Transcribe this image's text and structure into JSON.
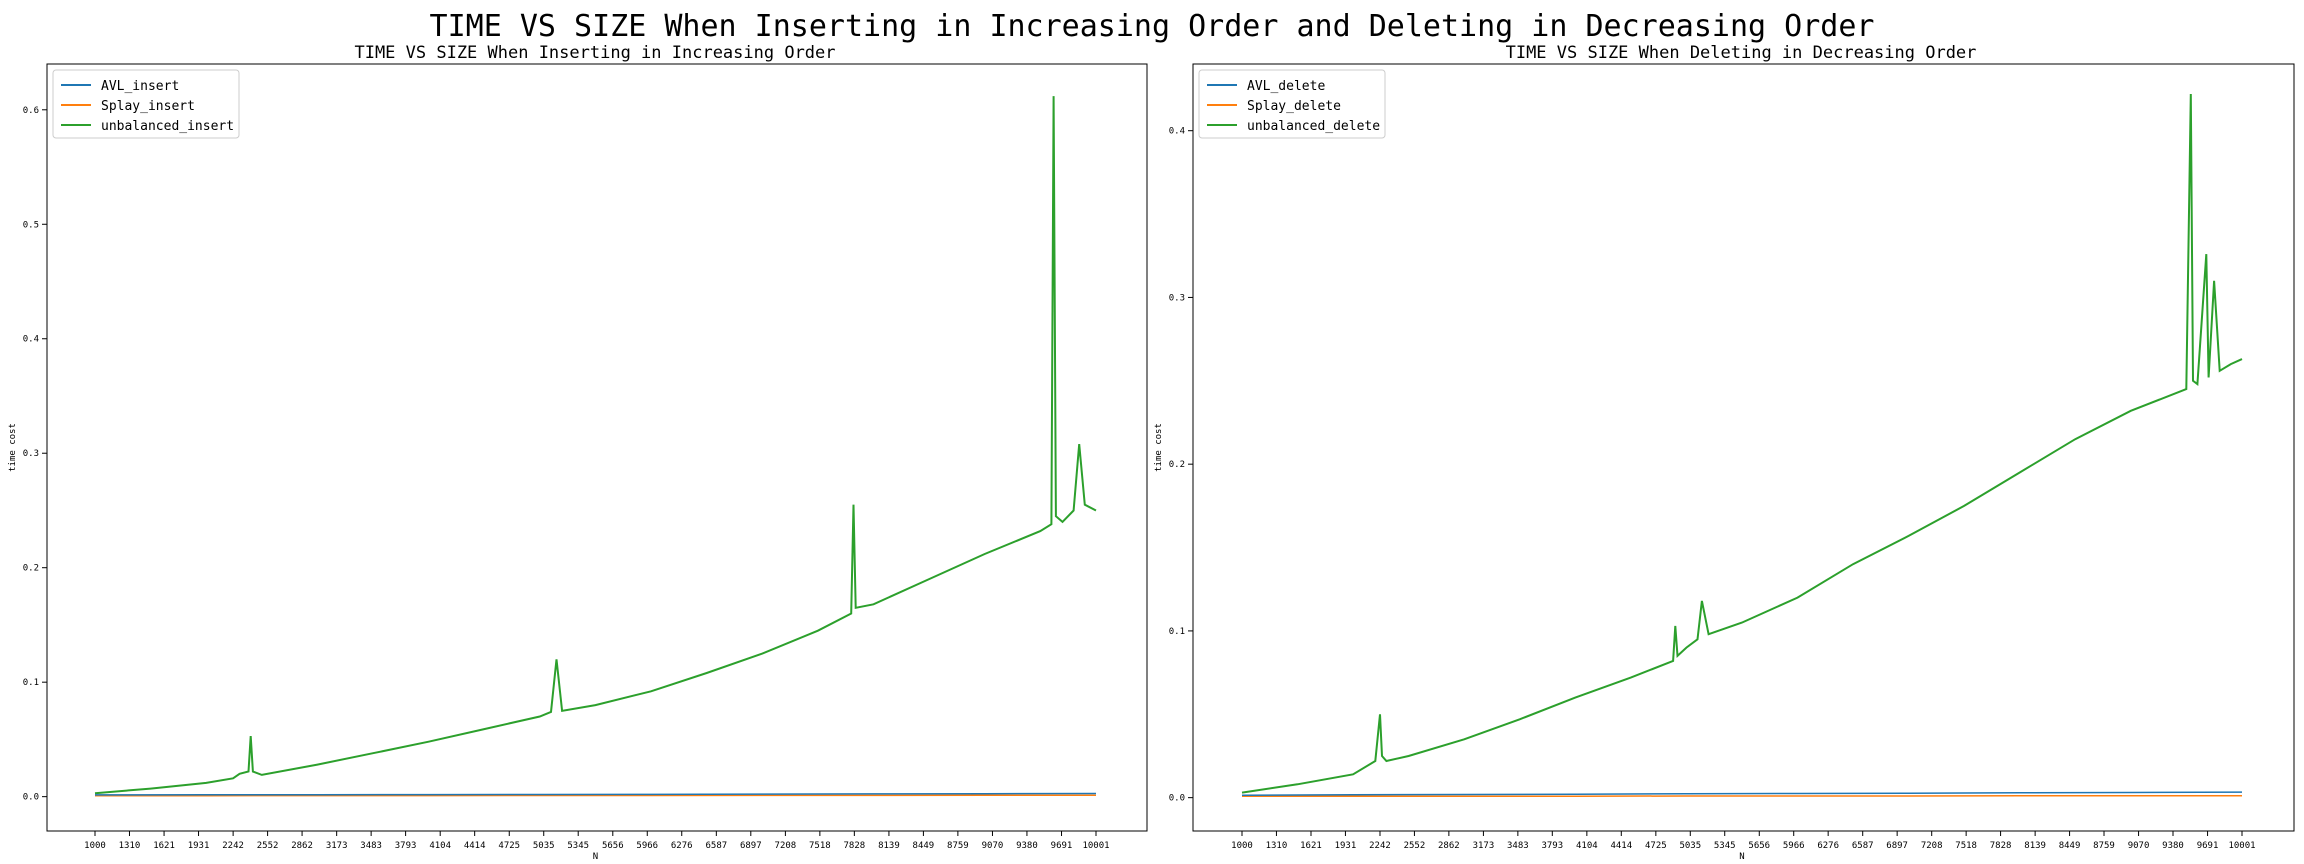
{
  "suptitle": "TIME VS SIZE When Inserting in Increasing Order and Deleting in Decreasing Order",
  "chart_data": [
    {
      "type": "line",
      "title": "TIME VS SIZE When Inserting in Increasing Order",
      "xlabel": "N",
      "ylabel": "time cost",
      "xlim": [
        1000,
        10001
      ],
      "ylim": [
        -0.03,
        0.64
      ],
      "x_ticks": [
        "1000",
        "1310",
        "1621",
        "1931",
        "2242",
        "2552",
        "2862",
        "3173",
        "3483",
        "3793",
        "4104",
        "4414",
        "4725",
        "5035",
        "5345",
        "5656",
        "5966",
        "6276",
        "6587",
        "6897",
        "7208",
        "7518",
        "7828",
        "8139",
        "8449",
        "8759",
        "9070",
        "9380",
        "9691",
        "10001"
      ],
      "y_ticks": [
        0.0,
        0.1,
        0.2,
        0.3,
        0.4,
        0.5,
        0.6
      ],
      "legend_position": "upper-left",
      "series": [
        {
          "name": "AVL_insert",
          "color": "#1f77b4",
          "x": [
            1000,
            2000,
            3000,
            4000,
            5000,
            6000,
            7000,
            8000,
            9000,
            10001
          ],
          "y": [
            0.0015,
            0.0016,
            0.0017,
            0.0018,
            0.0019,
            0.002,
            0.0022,
            0.0024,
            0.0026,
            0.0028
          ]
        },
        {
          "name": "Splay_insert",
          "color": "#ff7f0e",
          "x": [
            1000,
            2000,
            3000,
            4000,
            5000,
            6000,
            7000,
            8000,
            9000,
            10001
          ],
          "y": [
            0.0008,
            0.0008,
            0.0009,
            0.0009,
            0.001,
            0.001,
            0.0011,
            0.0011,
            0.0012,
            0.0012
          ]
        },
        {
          "name": "unbalanced_insert",
          "color": "#2ca02c",
          "x": [
            1000,
            1500,
            2000,
            2242,
            2300,
            2380,
            2400,
            2420,
            2500,
            3000,
            3500,
            4000,
            4500,
            5000,
            5100,
            5150,
            5200,
            5500,
            6000,
            6500,
            7000,
            7500,
            7800,
            7820,
            7840,
            8000,
            8500,
            9000,
            9500,
            9600,
            9620,
            9640,
            9700,
            9800,
            9850,
            9900,
            10001
          ],
          "y": [
            0.003,
            0.007,
            0.012,
            0.016,
            0.02,
            0.022,
            0.053,
            0.022,
            0.019,
            0.028,
            0.038,
            0.048,
            0.059,
            0.07,
            0.074,
            0.12,
            0.075,
            0.08,
            0.092,
            0.108,
            0.125,
            0.145,
            0.16,
            0.255,
            0.165,
            0.168,
            0.19,
            0.212,
            0.232,
            0.238,
            0.612,
            0.245,
            0.24,
            0.25,
            0.308,
            0.255,
            0.25
          ]
        }
      ]
    },
    {
      "type": "line",
      "title": "TIME VS SIZE When Deleting in Decreasing Order",
      "xlabel": "N",
      "ylabel": "time cost",
      "xlim": [
        1000,
        10001
      ],
      "ylim": [
        -0.02,
        0.44
      ],
      "x_ticks": [
        "1000",
        "1310",
        "1621",
        "1931",
        "2242",
        "2552",
        "2862",
        "3173",
        "3483",
        "3793",
        "4104",
        "4414",
        "4725",
        "5035",
        "5345",
        "5656",
        "5966",
        "6276",
        "6587",
        "6897",
        "7208",
        "7518",
        "7828",
        "8139",
        "8449",
        "8759",
        "9070",
        "9380",
        "9691",
        "10001"
      ],
      "y_ticks": [
        0.0,
        0.1,
        0.2,
        0.3,
        0.4
      ],
      "legend_position": "upper-left",
      "series": [
        {
          "name": "AVL_delete",
          "color": "#1f77b4",
          "x": [
            1000,
            2000,
            3000,
            4000,
            5000,
            6000,
            7000,
            8000,
            9000,
            10001
          ],
          "y": [
            0.0015,
            0.0017,
            0.0019,
            0.0021,
            0.0023,
            0.0025,
            0.0027,
            0.0029,
            0.0031,
            0.0033
          ]
        },
        {
          "name": "Splay_delete",
          "color": "#ff7f0e",
          "x": [
            1000,
            2000,
            3000,
            4000,
            5000,
            6000,
            7000,
            8000,
            9000,
            10001
          ],
          "y": [
            0.0008,
            0.0008,
            0.0009,
            0.0009,
            0.001,
            0.001,
            0.001,
            0.0011,
            0.0011,
            0.0012
          ]
        },
        {
          "name": "unbalanced_delete",
          "color": "#2ca02c",
          "x": [
            1000,
            1500,
            2000,
            2200,
            2242,
            2260,
            2300,
            2500,
            3000,
            3500,
            4000,
            4500,
            4880,
            4900,
            4920,
            5000,
            5100,
            5140,
            5200,
            5500,
            6000,
            6500,
            7000,
            7500,
            8000,
            8500,
            9000,
            9500,
            9540,
            9560,
            9600,
            9680,
            9700,
            9750,
            9800,
            9900,
            10001
          ],
          "y": [
            0.003,
            0.008,
            0.014,
            0.022,
            0.05,
            0.025,
            0.022,
            0.025,
            0.035,
            0.047,
            0.06,
            0.072,
            0.082,
            0.103,
            0.085,
            0.09,
            0.095,
            0.118,
            0.098,
            0.105,
            0.12,
            0.14,
            0.157,
            0.175,
            0.195,
            0.215,
            0.232,
            0.245,
            0.422,
            0.25,
            0.248,
            0.326,
            0.252,
            0.31,
            0.256,
            0.26,
            0.263
          ]
        }
      ]
    }
  ]
}
